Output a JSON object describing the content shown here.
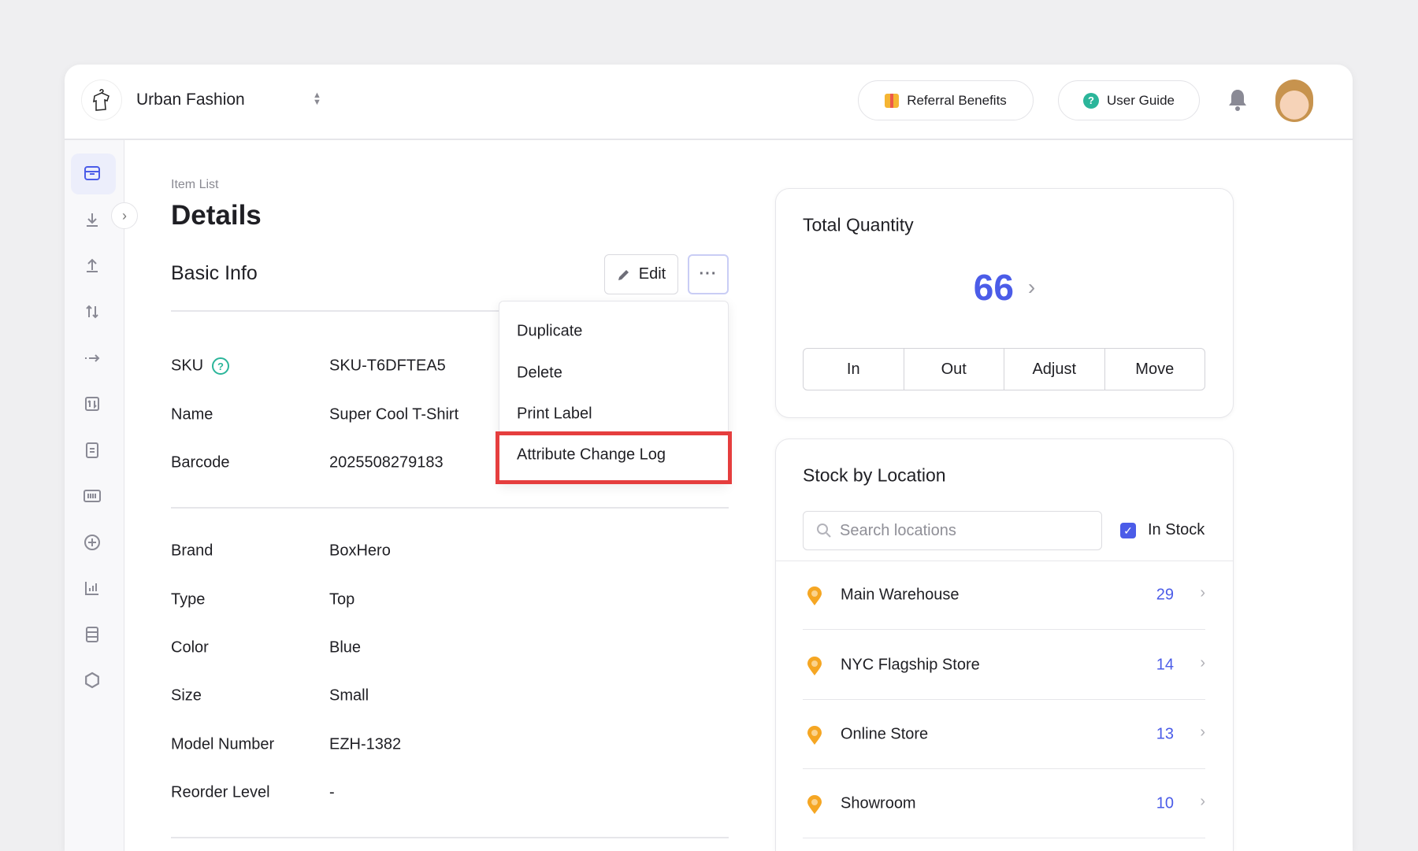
{
  "header": {
    "store_name": "Urban Fashion",
    "referral_label": "Referral Benefits",
    "guide_label": "User Guide"
  },
  "breadcrumb": "Item List",
  "page_title": "Details",
  "section_title": "Basic Info",
  "edit_label": "Edit",
  "more_label": "···",
  "menu": {
    "items": [
      "Duplicate",
      "Delete",
      "Print Label",
      "Attribute Change Log"
    ],
    "highlighted": "Attribute Change Log"
  },
  "fields": [
    {
      "label": "SKU",
      "value": "SKU-T6DFTEA5"
    },
    {
      "label": "Name",
      "value": "Super Cool T-Shirt"
    },
    {
      "label": "Barcode",
      "value": "2025508279183"
    },
    {
      "label": "Brand",
      "value": "BoxHero"
    },
    {
      "label": "Type",
      "value": "Top"
    },
    {
      "label": "Color",
      "value": "Blue"
    },
    {
      "label": "Size",
      "value": "Small"
    },
    {
      "label": "Model Number",
      "value": "EZH-1382"
    },
    {
      "label": "Reorder Level",
      "value": "-"
    }
  ],
  "total": {
    "title": "Total Quantity",
    "value": "66",
    "actions": [
      "In",
      "Out",
      "Adjust",
      "Move"
    ]
  },
  "stock": {
    "title": "Stock by Location",
    "search_placeholder": "Search locations",
    "in_stock_label": "In Stock",
    "in_stock_checked": true,
    "locations": [
      {
        "name": "Main Warehouse",
        "qty": "29"
      },
      {
        "name": "NYC Flagship Store",
        "qty": "14"
      },
      {
        "name": "Online Store",
        "qty": "13"
      },
      {
        "name": "Showroom",
        "qty": "10"
      }
    ]
  },
  "colors": {
    "accent": "#4b5ce8",
    "highlight": "#e53e3e",
    "pin": "#f5a623",
    "help": "#2bb59a"
  }
}
